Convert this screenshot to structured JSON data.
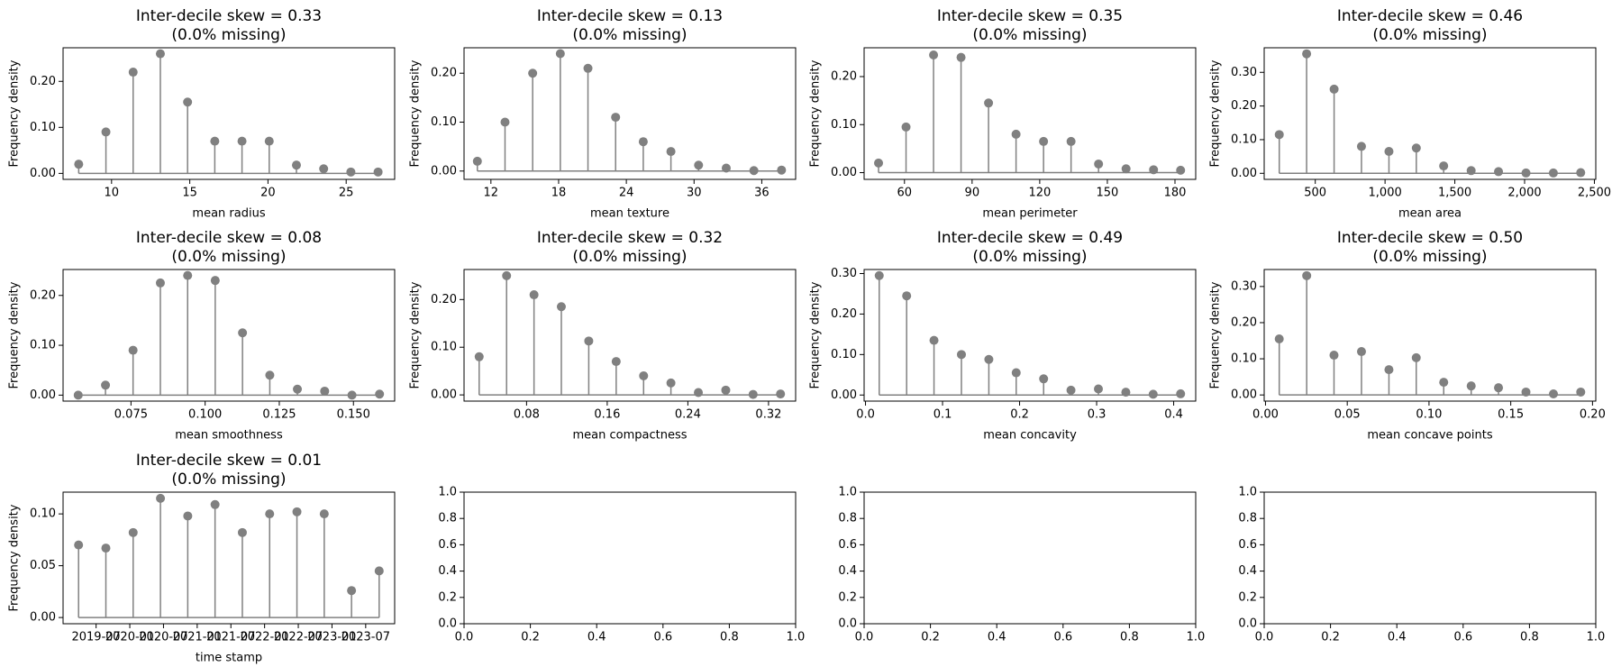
{
  "chart_data": [
    {
      "type": "stem",
      "title": "Inter-decile skew = 0.33",
      "subtitle": "(0.0% missing)",
      "xlabel": "mean radius",
      "ylabel": "Frequency density",
      "color": "#808080",
      "x": [
        7.9,
        9.64,
        11.38,
        13.12,
        14.86,
        16.6,
        18.34,
        20.08,
        21.82,
        23.56,
        25.3,
        27.04
      ],
      "values": [
        0.02,
        0.09,
        0.22,
        0.26,
        0.155,
        0.07,
        0.07,
        0.07,
        0.018,
        0.01,
        0.003,
        0.003
      ],
      "xlim": [
        6.9,
        28.1
      ],
      "xticks": [
        10,
        15,
        20,
        25
      ],
      "ylim": [
        -0.013,
        0.273
      ],
      "yticks": [
        {
          "value": 0,
          "label": "0.00"
        },
        {
          "value": 0.1,
          "label": "0.10"
        },
        {
          "value": 0.2,
          "label": "0.20"
        }
      ]
    },
    {
      "type": "stem",
      "title": "Inter-decile skew = 0.13",
      "subtitle": "(0.0% missing)",
      "xlabel": "mean texture",
      "ylabel": "Frequency density",
      "color": "#808080",
      "x": [
        10.8,
        13.25,
        15.7,
        18.15,
        20.6,
        23.05,
        25.5,
        27.95,
        30.4,
        32.85,
        35.3,
        37.75
      ],
      "values": [
        0.02,
        0.1,
        0.2,
        0.24,
        0.21,
        0.11,
        0.06,
        0.04,
        0.012,
        0.006,
        0.001,
        0.002
      ],
      "xlim": [
        9.62,
        39.0
      ],
      "xticks": [
        12,
        18,
        24,
        30,
        36
      ],
      "ylim": [
        -0.017,
        0.252
      ],
      "yticks": [
        {
          "value": 0,
          "label": "0.00"
        },
        {
          "value": 0.1,
          "label": "0.10"
        },
        {
          "value": 0.2,
          "label": "0.20"
        }
      ]
    },
    {
      "type": "stem",
      "title": "Inter-decile skew = 0.35",
      "subtitle": "(0.0% missing)",
      "xlabel": "mean perimeter",
      "ylabel": "Frequency density",
      "color": "#808080",
      "x": [
        48.5,
        60.7,
        72.9,
        85.1,
        97.3,
        109.5,
        121.7,
        133.9,
        146.1,
        158.3,
        170.5,
        182.5
      ],
      "values": [
        0.02,
        0.095,
        0.245,
        0.24,
        0.145,
        0.08,
        0.065,
        0.065,
        0.018,
        0.008,
        0.006,
        0.005
      ],
      "xlim": [
        42.1,
        189.2
      ],
      "xticks": [
        60,
        90,
        120,
        150,
        180
      ],
      "ylim": [
        -0.014,
        0.26
      ],
      "yticks": [
        {
          "value": 0,
          "label": "0.00"
        },
        {
          "value": 0.1,
          "label": "0.10"
        },
        {
          "value": 0.2,
          "label": "0.20"
        }
      ]
    },
    {
      "type": "stem",
      "title": "Inter-decile skew = 0.46",
      "subtitle": "(0.0% missing)",
      "xlabel": "mean area",
      "ylabel": "Frequency density",
      "color": "#808080",
      "x": [
        242,
        438,
        635,
        831,
        1028,
        1224,
        1420,
        1617,
        1813,
        2010,
        2206,
        2402
      ],
      "values": [
        0.115,
        0.355,
        0.25,
        0.08,
        0.065,
        0.075,
        0.022,
        0.008,
        0.005,
        0.001,
        0.001,
        0.002
      ],
      "xlim": [
        134,
        2510
      ],
      "xticks": [
        500,
        {
          "value": 1000,
          "label": "1,000"
        },
        {
          "value": 1500,
          "label": "1,500"
        },
        {
          "value": 2000,
          "label": "2,000"
        },
        {
          "value": 2500,
          "label": "2,500"
        }
      ],
      "ylim": [
        -0.018,
        0.373
      ],
      "yticks": [
        {
          "value": 0,
          "label": "0.00"
        },
        {
          "value": 0.1,
          "label": "0.10"
        },
        {
          "value": 0.2,
          "label": "0.20"
        },
        {
          "value": 0.3,
          "label": "0.30"
        }
      ]
    },
    {
      "type": "stem",
      "title": "Inter-decile skew = 0.08",
      "subtitle": "(0.0% missing)",
      "xlabel": "mean smoothness",
      "ylabel": "Frequency density",
      "color": "#808080",
      "x": [
        0.0572,
        0.0664,
        0.0757,
        0.0849,
        0.0941,
        0.1034,
        0.1126,
        0.1218,
        0.1311,
        0.1403,
        0.1495,
        0.1588
      ],
      "values": [
        0.0,
        0.02,
        0.09,
        0.225,
        0.24,
        0.23,
        0.125,
        0.04,
        0.012,
        0.008,
        0.0,
        0.002
      ],
      "xlim": [
        0.0521,
        0.1639
      ],
      "xticks": [
        0.075,
        {
          "value": 0.1,
          "label": "0.100"
        },
        0.125,
        {
          "value": 0.15,
          "label": "0.150"
        }
      ],
      "ylim": [
        -0.012,
        0.252
      ],
      "yticks": [
        {
          "value": 0,
          "label": "0.00"
        },
        {
          "value": 0.1,
          "label": "0.10"
        },
        {
          "value": 0.2,
          "label": "0.20"
        }
      ]
    },
    {
      "type": "stem",
      "title": "Inter-decile skew = 0.32",
      "subtitle": "(0.0% missing)",
      "xlabel": "mean compactness",
      "ylabel": "Frequency density",
      "color": "#808080",
      "x": [
        0.033,
        0.0602,
        0.0874,
        0.1145,
        0.1417,
        0.1689,
        0.1961,
        0.2232,
        0.2504,
        0.2776,
        0.3047,
        0.3319
      ],
      "values": [
        0.08,
        0.25,
        0.21,
        0.185,
        0.113,
        0.07,
        0.04,
        0.025,
        0.005,
        0.01,
        0.001,
        0.002
      ],
      "xlim": [
        0.018,
        0.3469
      ],
      "xticks": [
        0.08,
        0.16,
        0.24,
        0.32
      ],
      "ylim": [
        -0.013,
        0.263
      ],
      "yticks": [
        {
          "value": 0,
          "label": "0.00"
        },
        {
          "value": 0.1,
          "label": "0.10"
        },
        {
          "value": 0.2,
          "label": "0.20"
        }
      ]
    },
    {
      "type": "stem",
      "title": "Inter-decile skew = 0.49",
      "subtitle": "(0.0% missing)",
      "xlabel": "mean concavity",
      "ylabel": "Frequency density",
      "color": "#808080",
      "x": [
        0.0178,
        0.0534,
        0.0889,
        0.1245,
        0.1601,
        0.1956,
        0.2312,
        0.2667,
        0.3023,
        0.3379,
        0.3734,
        0.409
      ],
      "values": [
        0.295,
        0.245,
        0.135,
        0.1,
        0.088,
        0.055,
        0.04,
        0.012,
        0.015,
        0.007,
        0.002,
        0.003
      ],
      "xlim": [
        -0.0018,
        0.4286
      ],
      "xticks": [
        {
          "value": 0,
          "label": "0.0"
        },
        0.1,
        0.2,
        0.3,
        0.4
      ],
      "ylim": [
        -0.015,
        0.31
      ],
      "yticks": [
        {
          "value": 0,
          "label": "0.00"
        },
        {
          "value": 0.1,
          "label": "0.10"
        },
        {
          "value": 0.2,
          "label": "0.20"
        },
        {
          "value": 0.3,
          "label": "0.30"
        }
      ]
    },
    {
      "type": "stem",
      "title": "Inter-decile skew = 0.50",
      "subtitle": "(0.0% missing)",
      "xlabel": "mean concave points",
      "ylabel": "Frequency density",
      "color": "#808080",
      "x": [
        0.0084,
        0.0252,
        0.0419,
        0.0587,
        0.0755,
        0.0922,
        0.109,
        0.1258,
        0.1425,
        0.1593,
        0.1761,
        0.1928
      ],
      "values": [
        0.155,
        0.33,
        0.11,
        0.12,
        0.07,
        0.103,
        0.035,
        0.025,
        0.02,
        0.008,
        0.003,
        0.008
      ],
      "xlim": [
        -0.0008,
        0.202
      ],
      "xticks": [
        {
          "value": 0,
          "label": "0.00"
        },
        0.05,
        {
          "value": 0.1,
          "label": "0.10"
        },
        0.15,
        {
          "value": 0.2,
          "label": "0.20"
        }
      ],
      "ylim": [
        -0.017,
        0.347
      ],
      "yticks": [
        {
          "value": 0,
          "label": "0.00"
        },
        {
          "value": 0.1,
          "label": "0.10"
        },
        {
          "value": 0.2,
          "label": "0.20"
        },
        {
          "value": 0.3,
          "label": "0.30"
        }
      ]
    },
    {
      "type": "stem",
      "title": "Inter-decile skew = 0.01",
      "subtitle": "(0.0% missing)",
      "xlabel": "time stamp",
      "ylabel": "Frequency density",
      "color": "#808080",
      "x": [
        2019.24,
        2019.645,
        2020.05,
        2020.455,
        2020.86,
        2021.265,
        2021.67,
        2022.075,
        2022.48,
        2022.885,
        2023.29,
        2023.7
      ],
      "values": [
        0.07,
        0.067,
        0.082,
        0.115,
        0.098,
        0.109,
        0.082,
        0.1,
        0.102,
        0.1,
        0.026,
        0.045
      ],
      "xlim": [
        2019.01,
        2023.93
      ],
      "xticks": [
        {
          "value": 2019.5,
          "label": "2019-07"
        },
        {
          "value": 2020.0,
          "label": "2020-01"
        },
        {
          "value": 2020.5,
          "label": "2020-07"
        },
        {
          "value": 2021.0,
          "label": "2021-01"
        },
        {
          "value": 2021.5,
          "label": "2021-07"
        },
        {
          "value": 2022.0,
          "label": "2022-01"
        },
        {
          "value": 2022.5,
          "label": "2022-07"
        },
        {
          "value": 2023.0,
          "label": "2023-01"
        },
        {
          "value": 2023.5,
          "label": "2023-07"
        }
      ],
      "ylim": [
        -0.006,
        0.121
      ],
      "yticks": [
        {
          "value": 0,
          "label": "0.00"
        },
        0.05,
        {
          "value": 0.1,
          "label": "0.10"
        }
      ]
    },
    {
      "type": "empty",
      "xlim": [
        0,
        1
      ],
      "ylim": [
        0,
        1
      ],
      "xticks": [
        {
          "value": 0,
          "label": "0.0"
        },
        0.2,
        0.4,
        0.6,
        0.8,
        {
          "value": 1,
          "label": "1.0"
        }
      ],
      "yticks": [
        {
          "value": 0,
          "label": "0.0"
        },
        0.2,
        0.4,
        0.6,
        0.8,
        {
          "value": 1,
          "label": "1.0"
        }
      ]
    },
    {
      "type": "empty",
      "xlim": [
        0,
        1
      ],
      "ylim": [
        0,
        1
      ],
      "xticks": [
        {
          "value": 0,
          "label": "0.0"
        },
        0.2,
        0.4,
        0.6,
        0.8,
        {
          "value": 1,
          "label": "1.0"
        }
      ],
      "yticks": [
        {
          "value": 0,
          "label": "0.0"
        },
        0.2,
        0.4,
        0.6,
        0.8,
        {
          "value": 1,
          "label": "1.0"
        }
      ]
    },
    {
      "type": "empty",
      "xlim": [
        0,
        1
      ],
      "ylim": [
        0,
        1
      ],
      "xticks": [
        {
          "value": 0,
          "label": "0.0"
        },
        0.2,
        0.4,
        0.6,
        0.8,
        {
          "value": 1,
          "label": "1.0"
        }
      ],
      "yticks": [
        {
          "value": 0,
          "label": "0.0"
        },
        0.2,
        0.4,
        0.6,
        0.8,
        {
          "value": 1,
          "label": "1.0"
        }
      ]
    }
  ]
}
